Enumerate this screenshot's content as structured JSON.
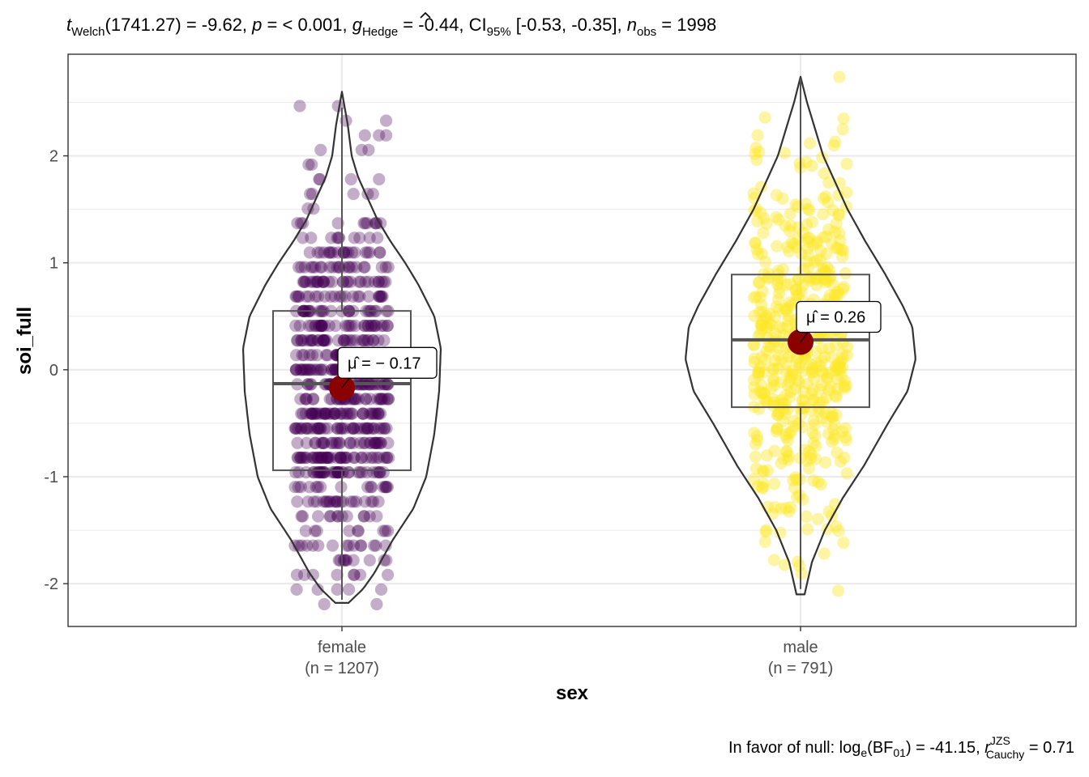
{
  "subtitle": {
    "t_sym": "t",
    "t_sub": "Welch",
    "t_val": "(1741.27) = -9.62, ",
    "p_sym": "p",
    "p_val": " = < 0.001, ",
    "g_sym": "g",
    "g_sub": "Hedge",
    "g_val": " = -0.44, CI",
    "ci_sub": "95%",
    "ci_val": " [-0.53, -0.35], ",
    "n_sym": "n",
    "n_sub": "obs",
    "n_val": " = 1998"
  },
  "caption": {
    "prefix": "In favor of null: log",
    "log_sub": "e",
    "bf": "(BF",
    "bf_sub": "01",
    "mid": ") = -41.15, ",
    "r_sym": "r",
    "r_sup": "JZS",
    "r_sub": "Cauchy",
    "suffix": " = 0.71"
  },
  "colors": {
    "female_points": "#440154",
    "male_points": "#FDE725",
    "mean_point": "#8B0000",
    "grid": "#EBEBEB",
    "outline": "#333333"
  },
  "chart_data": {
    "type": "violin-box-scatter",
    "xlabel": "sex",
    "ylabel": "soi_full",
    "ylim": [
      -2.4,
      2.95
    ],
    "yticks": [
      -2,
      -1,
      0,
      1,
      2
    ],
    "ytick_labels": [
      "-2",
      "-1",
      "0",
      "1",
      "2"
    ],
    "grid": true,
    "categories": [
      {
        "name": "female",
        "n_label": "(n = 1207)",
        "n": 1207,
        "mean": -0.17,
        "mean_label": "= − 0.17",
        "box": {
          "q1": -0.94,
          "median": -0.13,
          "q3": 0.55
        },
        "whisker": [
          -2.15,
          2.45
        ],
        "range": [
          -2.18,
          2.6
        ],
        "color": "#440154"
      },
      {
        "name": "male",
        "n_label": "(n = 791)",
        "n": 791,
        "mean": 0.26,
        "mean_label": "= 0.26",
        "box": {
          "q1": -0.35,
          "median": 0.28,
          "q3": 0.89
        },
        "whisker": [
          -2.05,
          2.72
        ],
        "range": [
          -2.1,
          2.74
        ],
        "color": "#FDE725"
      }
    ]
  }
}
